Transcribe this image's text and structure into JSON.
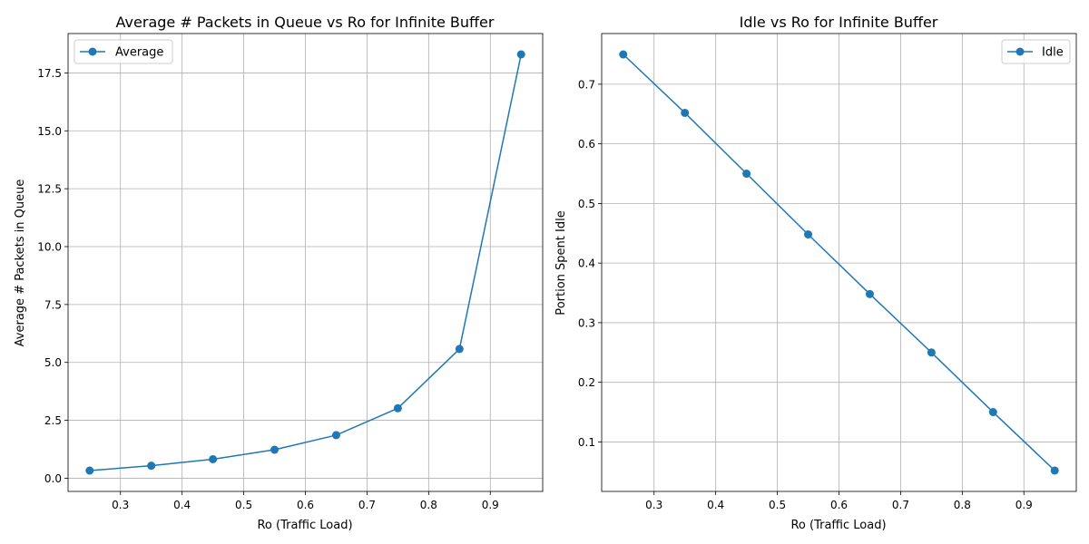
{
  "chart_data": [
    {
      "type": "line",
      "title": "Average # Packets in Queue vs Ro for Infinite Buffer",
      "xlabel": "Ro (Traffic Load)",
      "ylabel": "Average # Packets in Queue",
      "x": [
        0.25,
        0.35,
        0.45,
        0.55,
        0.65,
        0.75,
        0.85,
        0.95
      ],
      "series": [
        {
          "name": "Average",
          "values": [
            0.33,
            0.54,
            0.82,
            1.23,
            1.86,
            3.02,
            5.58,
            18.3
          ],
          "color": "#1f77b4",
          "marker": "circle"
        }
      ],
      "xticks": [
        0.3,
        0.4,
        0.5,
        0.6,
        0.7,
        0.8,
        0.9
      ],
      "xtick_labels": [
        "0.3",
        "0.4",
        "0.5",
        "0.6",
        "0.7",
        "0.8",
        "0.9"
      ],
      "yticks": [
        0.0,
        2.5,
        5.0,
        7.5,
        10.0,
        12.5,
        15.0,
        17.5
      ],
      "ytick_labels": [
        "0.0",
        "2.5",
        "5.0",
        "7.5",
        "10.0",
        "12.5",
        "15.0",
        "17.5"
      ],
      "xlim": [
        0.215,
        0.985
      ],
      "ylim": [
        -0.57,
        19.2
      ],
      "grid": true,
      "legend_position": "upper-left"
    },
    {
      "type": "line",
      "title": "Idle vs Ro for Infinite Buffer",
      "xlabel": "Ro (Traffic Load)",
      "ylabel": "Portion Spent Idle",
      "x": [
        0.25,
        0.35,
        0.45,
        0.55,
        0.65,
        0.75,
        0.85,
        0.95
      ],
      "series": [
        {
          "name": "Idle",
          "values": [
            0.75,
            0.652,
            0.55,
            0.448,
            0.348,
            0.25,
            0.15,
            0.052
          ],
          "color": "#1f77b4",
          "marker": "circle"
        }
      ],
      "xticks": [
        0.3,
        0.4,
        0.5,
        0.6,
        0.7,
        0.8,
        0.9
      ],
      "xtick_labels": [
        "0.3",
        "0.4",
        "0.5",
        "0.6",
        "0.7",
        "0.8",
        "0.9"
      ],
      "yticks": [
        0.1,
        0.2,
        0.3,
        0.4,
        0.5,
        0.6,
        0.7
      ],
      "ytick_labels": [
        "0.1",
        "0.2",
        "0.3",
        "0.4",
        "0.5",
        "0.6",
        "0.7"
      ],
      "xlim": [
        0.215,
        0.985
      ],
      "ylim": [
        0.017,
        0.785
      ],
      "grid": true,
      "legend_position": "upper-right"
    }
  ]
}
